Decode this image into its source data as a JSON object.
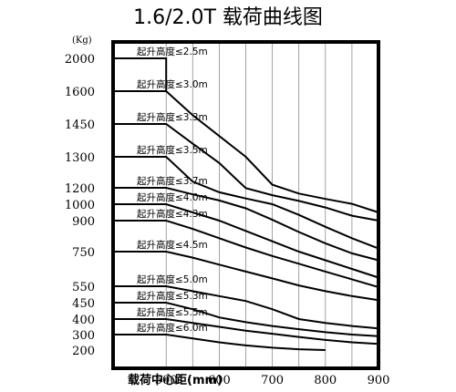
{
  "chart_data": {
    "type": "line",
    "title": "1.6/2.0T 载荷曲线图",
    "ylabel_unit": "(Kg)",
    "xlabel": "载荷中心距(mm)",
    "x_ticks": [
      500,
      600,
      700,
      800,
      900
    ],
    "y_ticks": [
      2000,
      1600,
      1450,
      1300,
      1200,
      1000,
      900,
      750,
      550,
      450,
      400,
      300,
      200
    ],
    "xlim": [
      400,
      900
    ],
    "grid": true,
    "series": [
      {
        "name": "起升高度≤2.5m",
        "x": [
          400,
          500,
          500
        ],
        "y": [
          2000,
          2000,
          1600
        ]
      },
      {
        "name": "起升高度≤3.0m",
        "x": [
          400,
          500,
          550,
          600,
          650,
          700,
          750,
          800,
          850,
          900
        ],
        "y": [
          1600,
          1600,
          1490,
          1395,
          1300,
          1210,
          1130,
          1065,
          1005,
          950
        ]
      },
      {
        "name": "起升高度≤3.3m",
        "x": [
          400,
          500,
          550,
          600,
          650,
          700,
          750,
          800,
          850,
          900
        ],
        "y": [
          1450,
          1450,
          1360,
          1280,
          1195,
          1110,
          1040,
          980,
          930,
          900
        ]
      },
      {
        "name": "起升高度≤3.5m",
        "x": [
          400,
          500,
          550,
          600,
          650,
          700,
          750,
          800,
          850,
          900
        ],
        "y": [
          1300,
          1300,
          1220,
          1145,
          1070,
          1000,
          935,
          870,
          815,
          765
        ]
      },
      {
        "name": "起升高度≤3.7m",
        "x": [
          400,
          500,
          550,
          600,
          650,
          700,
          750,
          800,
          850,
          900
        ],
        "y": [
          1200,
          1200,
          1120,
          1045,
          975,
          905,
          845,
          790,
          740,
          700
        ]
      },
      {
        "name": "起升高度≤4.0m",
        "x": [
          400,
          500,
          550,
          600,
          650,
          700,
          750,
          800,
          850,
          900
        ],
        "y": [
          1000,
          1000,
          950,
          900,
          850,
          800,
          750,
          700,
          650,
          600
        ]
      },
      {
        "name": "起升高度≤4.3m",
        "x": [
          400,
          500,
          550,
          600,
          650,
          700,
          750,
          800,
          850,
          900
        ],
        "y": [
          900,
          900,
          860,
          815,
          770,
          725,
          680,
          635,
          590,
          545
        ]
      },
      {
        "name": "起升高度≤4.5m",
        "x": [
          400,
          500,
          550,
          600,
          650,
          700,
          750,
          800,
          850,
          900
        ],
        "y": [
          750,
          750,
          715,
          675,
          635,
          595,
          555,
          520,
          490,
          465
        ]
      },
      {
        "name": "起升高度≤5.0m",
        "x": [
          400,
          500,
          550,
          600,
          650,
          700,
          750,
          800,
          850,
          900
        ],
        "y": [
          550,
          550,
          520,
          490,
          460,
          430,
          400,
          375,
          355,
          340
        ]
      },
      {
        "name": "起升高度≤5.3m",
        "x": [
          400,
          500,
          550,
          600,
          650,
          700,
          750,
          800,
          850,
          900
        ],
        "y": [
          450,
          450,
          430,
          405,
          380,
          355,
          335,
          315,
          300,
          290
        ]
      },
      {
        "name": "起升高度≤5.5m",
        "x": [
          400,
          500,
          550,
          600,
          650,
          700,
          750,
          800,
          850,
          900
        ],
        "y": [
          400,
          400,
          375,
          350,
          325,
          305,
          285,
          265,
          250,
          240
        ]
      },
      {
        "name": "起升高度≤6.0m",
        "x": [
          400,
          500,
          550,
          600,
          650,
          700,
          750,
          800
        ],
        "y": [
          300,
          300,
          275,
          250,
          230,
          215,
          205,
          200
        ]
      }
    ]
  }
}
